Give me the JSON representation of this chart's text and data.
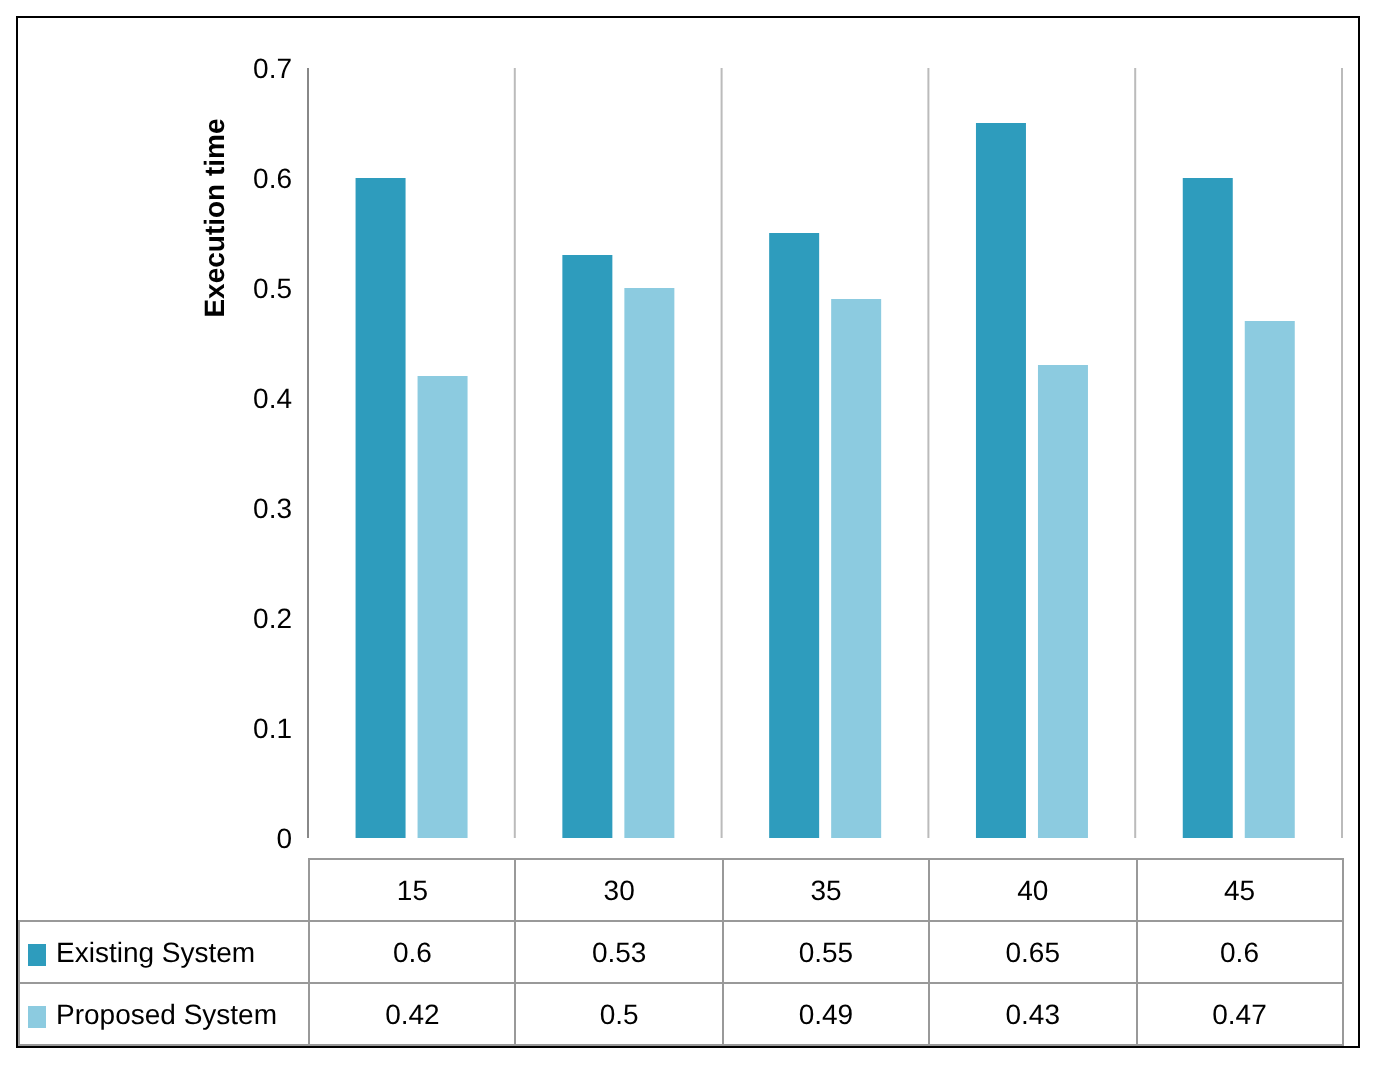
{
  "chart_data": {
    "type": "bar",
    "ylabel": "Execution time",
    "categories": [
      "15",
      "30",
      "35",
      "40",
      "45"
    ],
    "series": [
      {
        "name": "Existing System",
        "color": "#2e9cbd",
        "values": [
          0.6,
          0.53,
          0.55,
          0.65,
          0.6
        ]
      },
      {
        "name": "Proposed System",
        "color": "#8ccbe0",
        "values": [
          0.42,
          0.5,
          0.49,
          0.43,
          0.47
        ]
      }
    ],
    "ylim": [
      0,
      0.7
    ],
    "yticks": [
      0,
      0.1,
      0.2,
      0.3,
      0.4,
      0.5,
      0.6,
      0.7
    ],
    "grid": "x",
    "legend": "bottom",
    "data_labels": true
  }
}
